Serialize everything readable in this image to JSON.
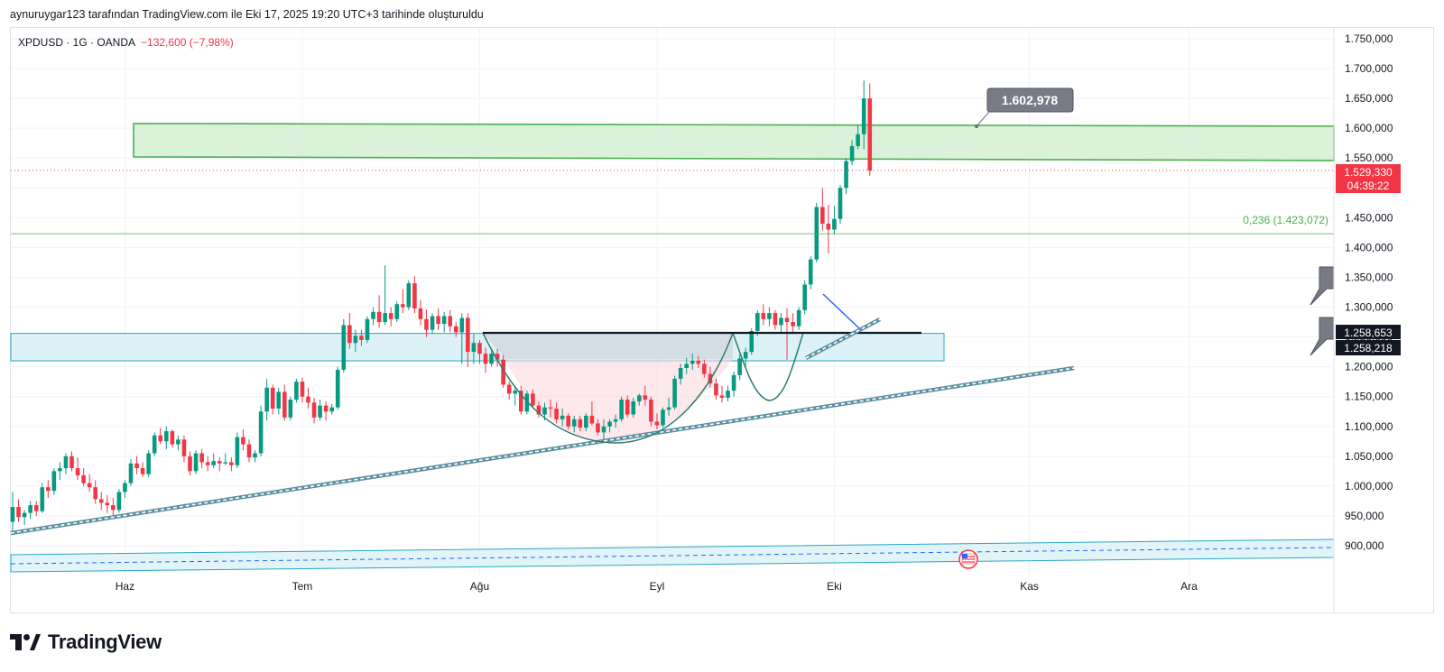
{
  "header": {
    "caption": "aynuruygar123 tarafından TradingView.com ile Eki 17, 2025 19:20 UTC+3 tarihinde oluşturuldu"
  },
  "legend": {
    "symbol": "XPDUSD · 1G · OANDA",
    "change": "−132,600 (−7,98%)"
  },
  "footer": {
    "brand": "TradingView"
  },
  "colors": {
    "up": "#089981",
    "down": "#f23645",
    "zone_green_fill": "#d4efd3",
    "zone_green_border": "#4caf50",
    "zone_blue_fill": "#d9f1f6",
    "zone_blue_border": "#26a9c8",
    "trend_line": "#5a8ea0",
    "neckline": "#131722",
    "price_tag_bg": "#f23645",
    "dark_tag_bg": "#131722"
  },
  "chart_data": {
    "type": "candlestick",
    "symbol": "XPDUSD",
    "interval": "1G",
    "broker": "OANDA",
    "ylim": [
      840000,
      1770000
    ],
    "y_ticks": [
      "1.750,000",
      "1.700,000",
      "1.650,000",
      "1.600,000",
      "1.550,000",
      "1.500,000",
      "1.450,000",
      "1.400,000",
      "1.350,000",
      "1.300,000",
      "1.250,000",
      "1.200,000",
      "1.150,000",
      "1.100,000",
      "1.050,000",
      "1.000,000",
      "950,000",
      "900,000"
    ],
    "y_tick_values": [
      1750000,
      1700000,
      1650000,
      1600000,
      1550000,
      1500000,
      1450000,
      1400000,
      1350000,
      1300000,
      1250000,
      1200000,
      1150000,
      1100000,
      1050000,
      1000000,
      950000,
      900000
    ],
    "month_labels": [
      {
        "label": "Haz",
        "index": 19
      },
      {
        "label": "Tem",
        "index": 49
      },
      {
        "label": "Ağu",
        "index": 79
      },
      {
        "label": "Eyl",
        "index": 109
      },
      {
        "label": "Eki",
        "index": 139
      },
      {
        "label": "Kas",
        "index": 172
      },
      {
        "label": "Ara",
        "index": 199
      }
    ],
    "candles": [
      [
        940,
        990,
        925,
        965
      ],
      [
        965,
        978,
        940,
        948
      ],
      [
        948,
        960,
        935,
        955
      ],
      [
        955,
        975,
        945,
        968
      ],
      [
        968,
        975,
        950,
        958
      ],
      [
        958,
        1005,
        955,
        998
      ],
      [
        998,
        1010,
        980,
        992
      ],
      [
        992,
        1030,
        985,
        1025
      ],
      [
        1025,
        1040,
        1010,
        1030
      ],
      [
        1030,
        1055,
        1020,
        1050
      ],
      [
        1050,
        1058,
        1025,
        1030
      ],
      [
        1030,
        1048,
        1010,
        1018
      ],
      [
        1018,
        1030,
        1000,
        1005
      ],
      [
        1005,
        1020,
        990,
        998
      ],
      [
        998,
        1010,
        970,
        978
      ],
      [
        978,
        990,
        960,
        972
      ],
      [
        972,
        985,
        955,
        968
      ],
      [
        968,
        980,
        950,
        960
      ],
      [
        960,
        995,
        955,
        990
      ],
      [
        990,
        1010,
        980,
        1005
      ],
      [
        1005,
        1045,
        1000,
        1038
      ],
      [
        1038,
        1050,
        1020,
        1030
      ],
      [
        1030,
        1040,
        1015,
        1020
      ],
      [
        1020,
        1060,
        1015,
        1055
      ],
      [
        1055,
        1090,
        1050,
        1085
      ],
      [
        1085,
        1098,
        1070,
        1075
      ],
      [
        1075,
        1100,
        1062,
        1092
      ],
      [
        1092,
        1095,
        1065,
        1070
      ],
      [
        1070,
        1085,
        1060,
        1078
      ],
      [
        1078,
        1085,
        1040,
        1050
      ],
      [
        1050,
        1058,
        1018,
        1025
      ],
      [
        1025,
        1060,
        1020,
        1055
      ],
      [
        1055,
        1062,
        1030,
        1040
      ],
      [
        1040,
        1050,
        1025,
        1035
      ],
      [
        1035,
        1055,
        1030,
        1042
      ],
      [
        1042,
        1048,
        1025,
        1038
      ],
      [
        1038,
        1055,
        1035,
        1040
      ],
      [
        1040,
        1048,
        1025,
        1035
      ],
      [
        1035,
        1090,
        1030,
        1082
      ],
      [
        1082,
        1095,
        1060,
        1070
      ],
      [
        1070,
        1078,
        1040,
        1048
      ],
      [
        1048,
        1060,
        1040,
        1055
      ],
      [
        1055,
        1135,
        1050,
        1125
      ],
      [
        1125,
        1180,
        1110,
        1165
      ],
      [
        1165,
        1170,
        1120,
        1130
      ],
      [
        1130,
        1165,
        1120,
        1158
      ],
      [
        1158,
        1170,
        1110,
        1115
      ],
      [
        1115,
        1150,
        1110,
        1145
      ],
      [
        1145,
        1180,
        1140,
        1175
      ],
      [
        1175,
        1182,
        1140,
        1150
      ],
      [
        1150,
        1165,
        1130,
        1140
      ],
      [
        1140,
        1148,
        1105,
        1115
      ],
      [
        1115,
        1145,
        1110,
        1135
      ],
      [
        1135,
        1142,
        1110,
        1125
      ],
      [
        1125,
        1138,
        1120,
        1132
      ],
      [
        1132,
        1200,
        1128,
        1195
      ],
      [
        1195,
        1280,
        1190,
        1270
      ],
      [
        1270,
        1290,
        1230,
        1240
      ],
      [
        1240,
        1262,
        1225,
        1252
      ],
      [
        1252,
        1262,
        1235,
        1245
      ],
      [
        1245,
        1285,
        1240,
        1280
      ],
      [
        1280,
        1300,
        1270,
        1292
      ],
      [
        1292,
        1320,
        1265,
        1275
      ],
      [
        1275,
        1370,
        1270,
        1290
      ],
      [
        1290,
        1300,
        1268,
        1280
      ],
      [
        1280,
        1310,
        1275,
        1305
      ],
      [
        1305,
        1330,
        1290,
        1300
      ],
      [
        1300,
        1345,
        1295,
        1340
      ],
      [
        1340,
        1352,
        1290,
        1298
      ],
      [
        1298,
        1312,
        1270,
        1280
      ],
      [
        1280,
        1296,
        1250,
        1262
      ],
      [
        1262,
        1290,
        1255,
        1285
      ],
      [
        1285,
        1298,
        1262,
        1272
      ],
      [
        1272,
        1292,
        1258,
        1285
      ],
      [
        1285,
        1295,
        1258,
        1268
      ],
      [
        1268,
        1275,
        1250,
        1258
      ],
      [
        1258,
        1290,
        1205,
        1282
      ],
      [
        1282,
        1290,
        1200,
        1225
      ],
      [
        1225,
        1255,
        1205,
        1240
      ],
      [
        1240,
        1245,
        1205,
        1222
      ],
      [
        1222,
        1232,
        1190,
        1205
      ],
      [
        1205,
        1228,
        1200,
        1222
      ],
      [
        1222,
        1230,
        1200,
        1212
      ],
      [
        1212,
        1220,
        1165,
        1170
      ],
      [
        1170,
        1175,
        1145,
        1155
      ],
      [
        1155,
        1168,
        1135,
        1160
      ],
      [
        1160,
        1168,
        1120,
        1125
      ],
      [
        1125,
        1160,
        1120,
        1155
      ],
      [
        1155,
        1162,
        1130,
        1135
      ],
      [
        1135,
        1142,
        1115,
        1120
      ],
      [
        1120,
        1140,
        1110,
        1132
      ],
      [
        1132,
        1145,
        1115,
        1130
      ],
      [
        1130,
        1140,
        1105,
        1112
      ],
      [
        1112,
        1130,
        1100,
        1118
      ],
      [
        1118,
        1122,
        1095,
        1100
      ],
      [
        1100,
        1118,
        1090,
        1112
      ],
      [
        1112,
        1118,
        1092,
        1098
      ],
      [
        1098,
        1122,
        1092,
        1118
      ],
      [
        1118,
        1142,
        1102,
        1105
      ],
      [
        1105,
        1112,
        1085,
        1090
      ],
      [
        1090,
        1112,
        1078,
        1100
      ],
      [
        1100,
        1112,
        1090,
        1108
      ],
      [
        1108,
        1120,
        1098,
        1112
      ],
      [
        1112,
        1150,
        1108,
        1145
      ],
      [
        1145,
        1152,
        1115,
        1120
      ],
      [
        1120,
        1148,
        1115,
        1142
      ],
      [
        1142,
        1155,
        1135,
        1152
      ],
      [
        1152,
        1168,
        1135,
        1145
      ],
      [
        1145,
        1150,
        1100,
        1108
      ],
      [
        1108,
        1122,
        1095,
        1102
      ],
      [
        1102,
        1132,
        1098,
        1128
      ],
      [
        1128,
        1148,
        1118,
        1132
      ],
      [
        1132,
        1185,
        1128,
        1180
      ],
      [
        1180,
        1205,
        1170,
        1198
      ],
      [
        1198,
        1215,
        1188,
        1205
      ],
      [
        1205,
        1222,
        1195,
        1210
      ],
      [
        1210,
        1218,
        1198,
        1205
      ],
      [
        1205,
        1212,
        1182,
        1188
      ],
      [
        1188,
        1200,
        1165,
        1172
      ],
      [
        1172,
        1180,
        1145,
        1152
      ],
      [
        1152,
        1168,
        1140,
        1148
      ],
      [
        1148,
        1168,
        1142,
        1160
      ],
      [
        1160,
        1192,
        1150,
        1186
      ],
      [
        1186,
        1220,
        1178,
        1214
      ],
      [
        1214,
        1232,
        1200,
        1225
      ],
      [
        1225,
        1265,
        1220,
        1260
      ],
      [
        1260,
        1295,
        1252,
        1290
      ],
      [
        1290,
        1305,
        1270,
        1280
      ],
      [
        1280,
        1300,
        1268,
        1290
      ],
      [
        1290,
        1295,
        1262,
        1270
      ],
      [
        1270,
        1290,
        1255,
        1282
      ],
      [
        1282,
        1298,
        1212,
        1275
      ],
      [
        1275,
        1290,
        1255,
        1268
      ],
      [
        1268,
        1300,
        1262,
        1295
      ],
      [
        1295,
        1345,
        1288,
        1338
      ],
      [
        1338,
        1385,
        1330,
        1380
      ],
      [
        1380,
        1475,
        1375,
        1468
      ],
      [
        1468,
        1500,
        1428,
        1440
      ],
      [
        1440,
        1472,
        1390,
        1430
      ],
      [
        1430,
        1470,
        1422,
        1448
      ],
      [
        1448,
        1505,
        1440,
        1500
      ],
      [
        1500,
        1550,
        1490,
        1545
      ],
      [
        1545,
        1580,
        1538,
        1570
      ],
      [
        1570,
        1605,
        1565,
        1590
      ],
      [
        1590,
        1680,
        1565,
        1650
      ],
      [
        1650,
        1675,
        1520,
        1529
      ]
    ],
    "annotations": {
      "resistance_zone": {
        "top": 1605000,
        "bottom": 1549000
      },
      "support_zone": {
        "top": 1256000,
        "bottom": 1210000
      },
      "fib_level": {
        "label": "0,236 (1.423,072)",
        "value": 1423072
      },
      "neckline": 1258000,
      "callout": "1.602,978",
      "current_price": "1.529,330",
      "countdown": "04:39:22",
      "tag_a": "1.258,653",
      "tag_b": "1.258,218",
      "current_value": 1529330
    }
  }
}
